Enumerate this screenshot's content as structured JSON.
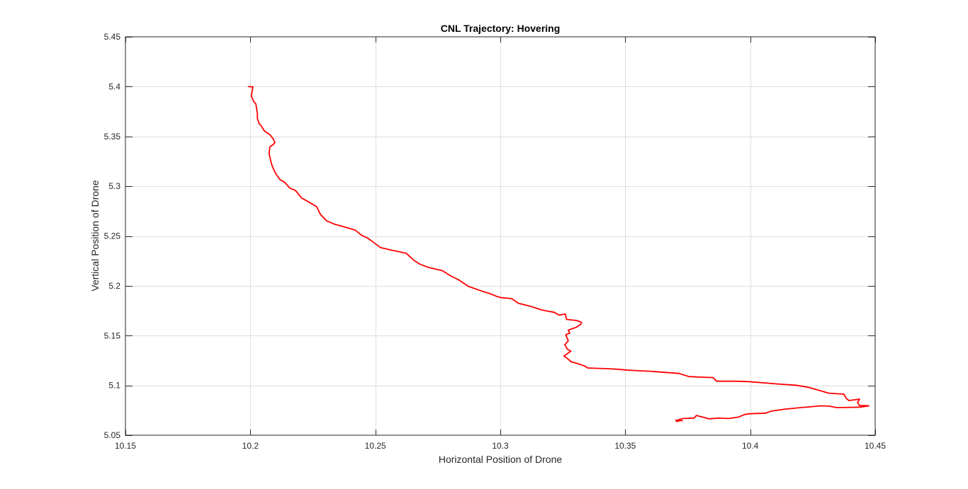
{
  "chart_data": {
    "type": "line",
    "title": "CNL Trajectory: Hovering",
    "xlabel": "Horizontal Position of Drone",
    "ylabel": "Vertical Position of Drone",
    "xlim": [
      10.15,
      10.45
    ],
    "ylim": [
      5.05,
      5.45
    ],
    "xticks": [
      10.15,
      10.2,
      10.25,
      10.3,
      10.35,
      10.4,
      10.45
    ],
    "xtick_labels": [
      "10.15",
      "10.2",
      "10.25",
      "10.3",
      "10.35",
      "10.4",
      "10.45"
    ],
    "yticks": [
      5.05,
      5.1,
      5.15,
      5.2,
      5.25,
      5.3,
      5.35,
      5.4,
      5.45
    ],
    "ytick_labels": [
      "5.05",
      "5.1",
      "5.15",
      "5.2",
      "5.25",
      "5.3",
      "5.35",
      "5.4",
      "5.45"
    ],
    "grid": true,
    "line_color": "#ff0000",
    "series": [
      {
        "x": [
          10.1992,
          10.201,
          10.2004,
          10.2013,
          10.2022,
          10.2028,
          10.2028,
          10.2035,
          10.2045,
          10.2055,
          10.2062,
          10.2078,
          10.2092,
          10.2098,
          10.209,
          10.2078,
          10.2075,
          10.2082,
          10.2088,
          10.21,
          10.2118,
          10.2138,
          10.2158,
          10.218,
          10.2205,
          10.2245,
          10.2265,
          10.228,
          10.2305,
          10.2335,
          10.2385,
          10.242,
          10.2445,
          10.247,
          10.249,
          10.252,
          10.2565,
          10.2623,
          10.2655,
          10.2678,
          10.2712,
          10.2768,
          10.2805,
          10.2835,
          10.2872,
          10.2925,
          10.2958,
          10.2985,
          10.3002,
          10.3045,
          10.3072,
          10.312,
          10.3165,
          10.3198,
          10.3215,
          10.3235,
          10.326,
          10.3265,
          10.3305,
          10.3325,
          10.3322,
          10.3305,
          10.3272,
          10.3278,
          10.3262,
          10.3272,
          10.3258,
          10.3268,
          10.3282,
          10.3268,
          10.3255,
          10.3272,
          10.3285,
          10.3302,
          10.3338,
          10.335,
          10.3378,
          10.3432,
          10.347,
          10.3515,
          10.36,
          10.362,
          10.3715,
          10.3755,
          10.3852,
          10.3865,
          10.3945,
          10.3995,
          10.412,
          10.4182,
          10.4232,
          10.426,
          10.4315,
          10.4375,
          10.4385,
          10.4395,
          10.4438,
          10.443,
          10.4432,
          10.4438,
          10.4462,
          10.4475,
          10.444,
          10.4372,
          10.4345,
          10.4315,
          10.428,
          10.424,
          10.4205,
          10.414,
          10.4085,
          10.4062,
          10.3998,
          10.3978,
          10.3953,
          10.3915,
          10.3875,
          10.3835,
          10.3785,
          10.3775,
          10.3732,
          10.3712,
          10.3728,
          10.3702,
          10.3715,
          10.3705
        ],
        "y": [
          5.4,
          5.3998,
          5.3905,
          5.3852,
          5.3825,
          5.373,
          5.368,
          5.3628,
          5.36,
          5.3558,
          5.3545,
          5.3518,
          5.3472,
          5.3438,
          5.3415,
          5.3395,
          5.3325,
          5.3245,
          5.3198,
          5.3132,
          5.3068,
          5.3038,
          5.298,
          5.2958,
          5.2882,
          5.2825,
          5.2795,
          5.2718,
          5.2652,
          5.262,
          5.2585,
          5.2558,
          5.2508,
          5.2478,
          5.2442,
          5.2385,
          5.2358,
          5.2328,
          5.2255,
          5.2218,
          5.2185,
          5.2152,
          5.2095,
          5.2058,
          5.1995,
          5.1948,
          5.1922,
          5.1895,
          5.1882,
          5.1872,
          5.1825,
          5.1795,
          5.1758,
          5.1742,
          5.1735,
          5.1705,
          5.1718,
          5.1662,
          5.1652,
          5.1635,
          5.1615,
          5.1585,
          5.1555,
          5.1525,
          5.1508,
          5.1448,
          5.1408,
          5.1365,
          5.1345,
          5.1318,
          5.1295,
          5.1262,
          5.1235,
          5.1225,
          5.1195,
          5.1175,
          5.1172,
          5.1168,
          5.1162,
          5.1152,
          5.1142,
          5.1138,
          5.112,
          5.1088,
          5.1078,
          5.1042,
          5.1042,
          5.1038,
          5.1012,
          5.1002,
          5.0982,
          5.0962,
          5.0922,
          5.0912,
          5.0868,
          5.0848,
          5.0862,
          5.0832,
          5.0815,
          5.0798,
          5.0798,
          5.0795,
          5.0782,
          5.0778,
          5.0778,
          5.0792,
          5.0795,
          5.0785,
          5.0778,
          5.0762,
          5.0742,
          5.0722,
          5.0715,
          5.0708,
          5.0682,
          5.0668,
          5.0672,
          5.0665,
          5.0698,
          5.0672,
          5.0668,
          5.0655,
          5.0645,
          5.0652,
          5.0642,
          5.0638
        ]
      }
    ]
  }
}
